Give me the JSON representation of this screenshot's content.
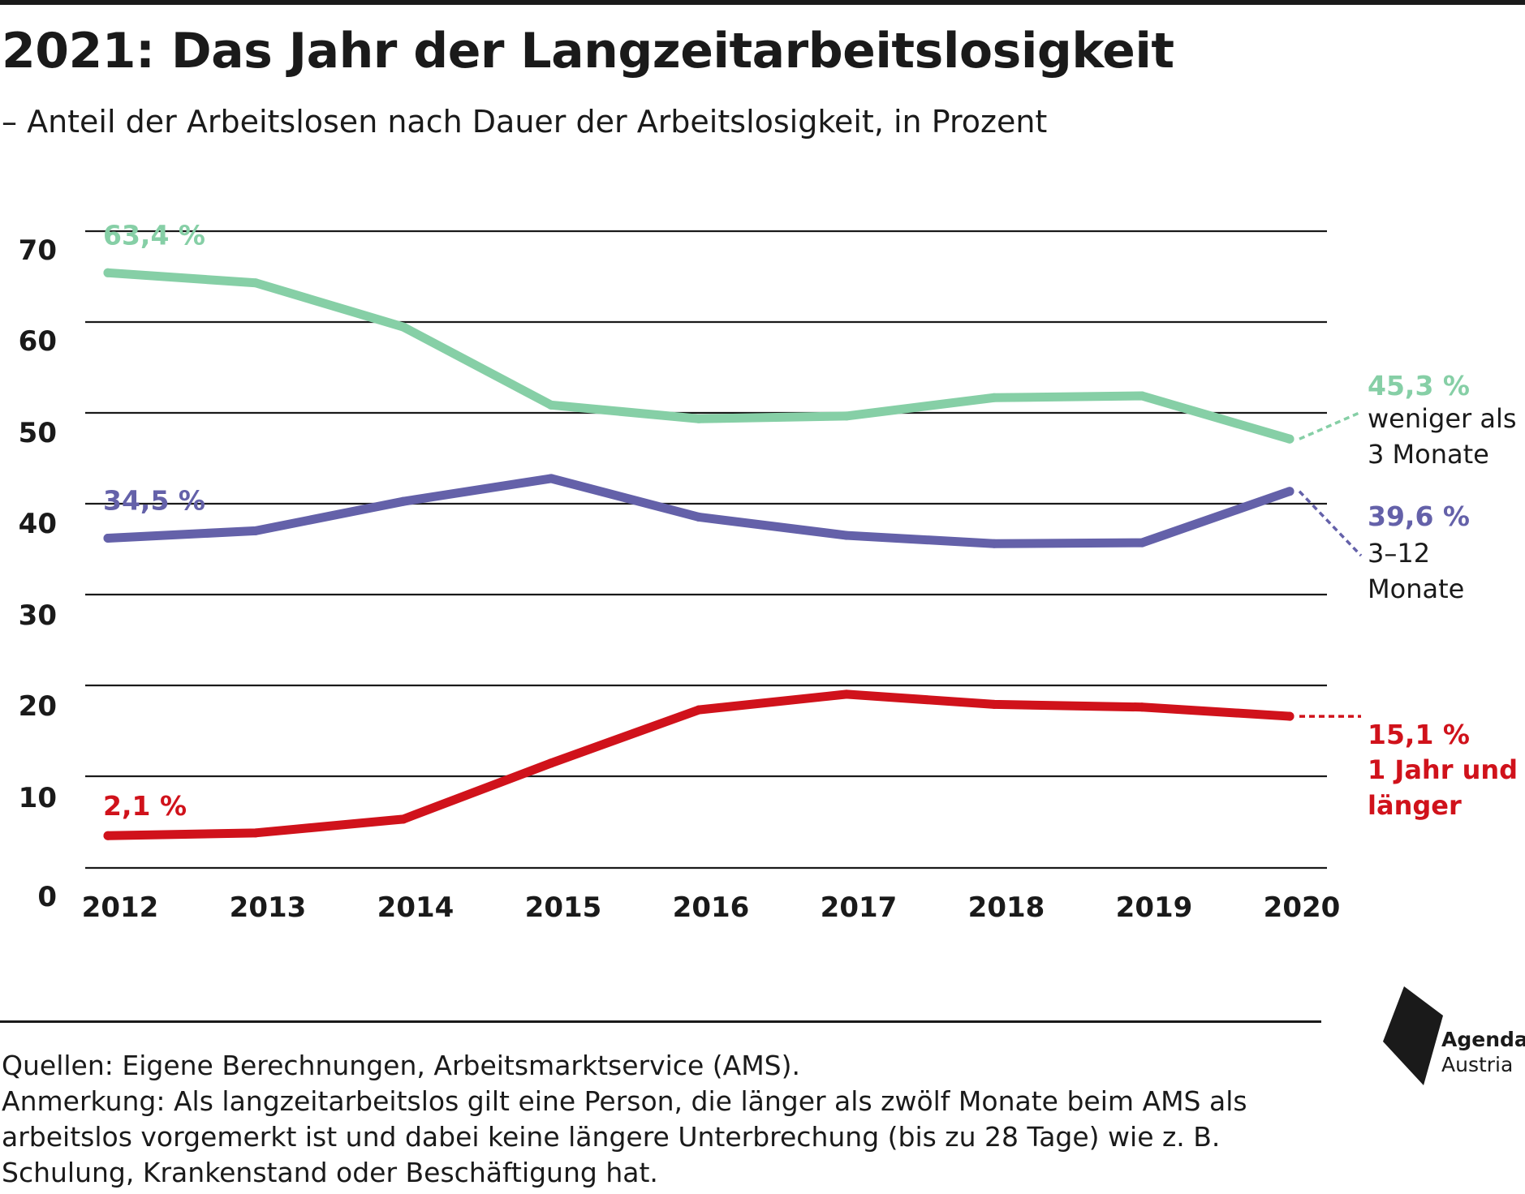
{
  "header": {
    "title": "2021: Das Jahr der Langzeitarbeitslosigkeit",
    "subtitle": "– Anteil der Arbeitslosen nach Dauer der Arbeitslosigkeit, in Prozent"
  },
  "colors": {
    "green": "#86cfa6",
    "purple": "#6461a9",
    "red": "#d0121b",
    "ink": "#1a1a1a"
  },
  "chart_data": {
    "type": "line",
    "title": "2021: Das Jahr der Langzeitarbeitslosigkeit",
    "subtitle": "– Anteil der Arbeitslosen nach Dauer der Arbeitslosigkeit, in Prozent",
    "x": [
      "2012",
      "2013",
      "2014",
      "2015",
      "2016",
      "2017",
      "2018",
      "2019",
      "2020"
    ],
    "y_ticks": [
      "70",
      "60",
      "50",
      "40",
      "30",
      "20",
      "10",
      "0"
    ],
    "ylim": [
      0,
      70
    ],
    "grid": true,
    "series": [
      {
        "name": "weniger als 3 Monate",
        "name_lines": [
          "weniger als",
          "3 Monate"
        ],
        "color": "#86cfa6",
        "values": [
          63.4,
          62.3,
          57.5,
          49.0,
          47.5,
          47.8,
          49.8,
          50.0,
          45.3
        ],
        "start_label": "63,4 %",
        "end_label": "45,3 %"
      },
      {
        "name": "3–12 Monate",
        "name_lines": [
          "3–12",
          "Monate"
        ],
        "color": "#6461a9",
        "values": [
          34.5,
          35.3,
          38.5,
          41.0,
          36.8,
          34.8,
          33.9,
          34.0,
          39.6
        ],
        "start_label": "34,5 %",
        "end_label": "39,6 %"
      },
      {
        "name": "1 Jahr und länger",
        "name_lines": [
          "1 Jahr und",
          "länger"
        ],
        "color": "#d0121b",
        "values": [
          2.1,
          2.4,
          3.9,
          10.0,
          15.8,
          17.5,
          16.4,
          16.1,
          15.1
        ],
        "start_label": "2,1 %",
        "end_label": "15,1 %"
      }
    ]
  },
  "footer": {
    "sources": "Quellen: Eigene Berechnungen, Arbeitsmarktservice (AMS).",
    "note_lines": [
      "Anmerkung: Als langzeitarbeitslos gilt eine Person, die länger als zwölf Monate beim AMS als",
      "arbeitslos vorgemerkt ist und dabei keine längere Unterbrechung (bis zu 28 Tage) wie z. B.",
      "Schulung, Krankenstand oder Beschäftigung hat."
    ]
  },
  "logo": {
    "name": "Agenda",
    "sub": "Austria",
    "icon": "agenda-austria-logo-icon"
  }
}
